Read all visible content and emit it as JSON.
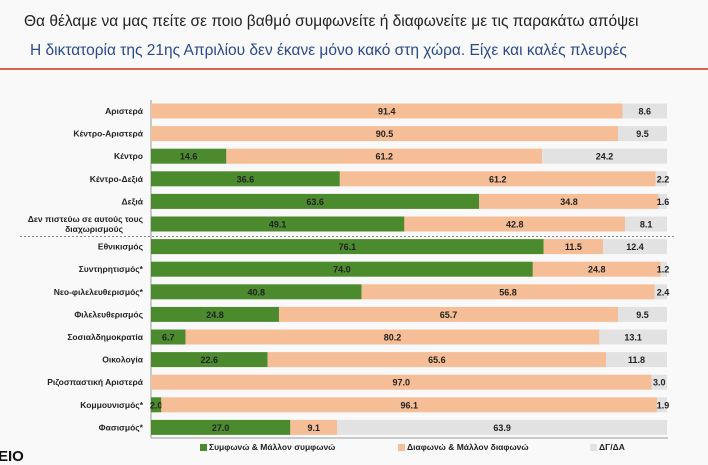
{
  "header": {
    "question": "Θα θέλαμε να μας πείτε σε ποιο βαθμό συμφωνείτε ή διαφωνείτε με τις παρακάτω απόψει",
    "statement": "Η δικτατορία της 21ης Απριλίου δεν έκανε μόνο κακό στη χώρα. Είχε και καλές πλευρές"
  },
  "logo_text": "EIO",
  "chart_data": {
    "type": "bar",
    "orientation": "horizontal",
    "stacked": true,
    "xlim": [
      0,
      100
    ],
    "colors": {
      "agree": "#4b8b2e",
      "disagree": "#f5be96",
      "dk": "#e2e2e2"
    },
    "legend_position": "bottom",
    "categories": [
      "Αριστερά",
      "Κέντρο-Αριστερά",
      "Κέντρο",
      "Κέντρο-Δεξιά",
      "Δεξιά",
      "Δεν πιστεύω σε αυτούς τους διαχωρισμούς",
      "Εθνικισμός",
      "Συντηρητισμός*",
      "Νεο-φιλελευθερισμός*",
      "Φιλελευθερισμός",
      "Σοσιαλδημοκρατία",
      "Οικολογία",
      "Ριζοσπαστική Αριστερά",
      "Κομμουνισμός*",
      "Φασισμός*"
    ],
    "series": [
      {
        "name": "Συμφωνώ & Μάλλον συμφωνώ",
        "values": [
          null,
          null,
          14.6,
          36.6,
          63.6,
          49.1,
          76.1,
          74.0,
          40.8,
          24.8,
          6.7,
          22.6,
          null,
          2.0,
          27.0
        ]
      },
      {
        "name": "Διαφωνώ & Μάλλον διαφωνώ",
        "values": [
          91.4,
          90.5,
          61.2,
          61.2,
          34.8,
          42.8,
          11.5,
          24.8,
          56.8,
          65.7,
          80.2,
          65.6,
          97.0,
          96.1,
          9.1
        ]
      },
      {
        "name": "ΔΓ/ΔΑ",
        "values": [
          8.6,
          9.5,
          24.2,
          2.2,
          1.6,
          8.1,
          12.4,
          1.2,
          2.4,
          9.5,
          13.1,
          11.8,
          3.0,
          1.9,
          63.9
        ]
      }
    ]
  }
}
